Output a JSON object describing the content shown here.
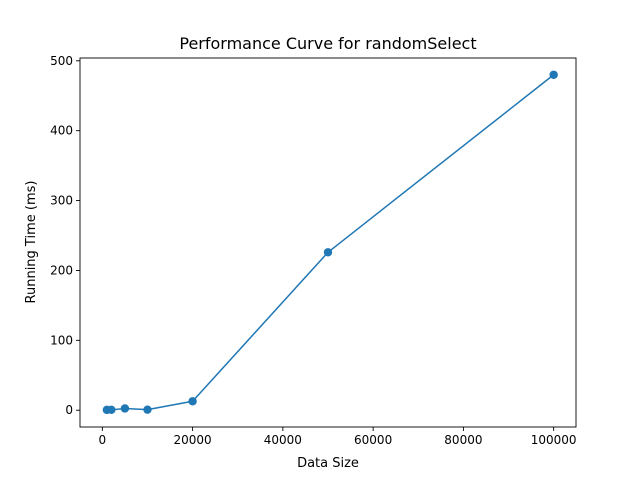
{
  "chart_data": {
    "type": "line",
    "title": "Performance Curve for randomSelect",
    "xlabel": "Data Size",
    "ylabel": "Running Time (ms)",
    "xlim": [
      -4950,
      104950
    ],
    "ylim": [
      -24,
      504
    ],
    "xticks": [
      0,
      20000,
      40000,
      60000,
      80000,
      100000
    ],
    "xtick_labels": [
      "0",
      "20000",
      "40000",
      "60000",
      "80000",
      "100000"
    ],
    "yticks": [
      0,
      100,
      200,
      300,
      400,
      500
    ],
    "ytick_labels": [
      "0",
      "100",
      "200",
      "300",
      "400",
      "500"
    ],
    "grid": false,
    "series": [
      {
        "color": "#1f77b4",
        "marker": "circle",
        "x": [
          1000,
          2000,
          5000,
          10000,
          20000,
          50000,
          100000
        ],
        "y": [
          0.5,
          0.6,
          2.5,
          0.8,
          12.8,
          226,
          480
        ]
      }
    ]
  }
}
